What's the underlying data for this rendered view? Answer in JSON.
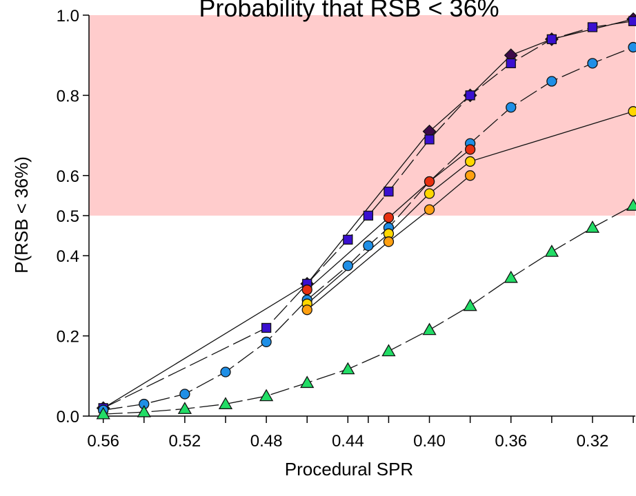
{
  "chart_data": {
    "type": "line",
    "title": "Probability that RSB < 36%",
    "xlabel": "Procedural SPR",
    "ylabel": "P(RSB < 36%)",
    "xlim": [
      0.567,
      0.299
    ],
    "ylim": [
      0.0,
      1.0
    ],
    "x_ticks": [
      0.56,
      0.52,
      0.48,
      0.44,
      0.4,
      0.36,
      0.32
    ],
    "x_ticks_minor": [
      0.56,
      0.54,
      0.52,
      0.5,
      0.48,
      0.46,
      0.44,
      0.43,
      0.42,
      0.4,
      0.38,
      0.36,
      0.34,
      0.32,
      0.3
    ],
    "y_ticks": [
      0.0,
      0.2,
      0.4,
      0.5,
      0.6,
      0.8,
      1.0
    ],
    "y_tick_labels": [
      "0.0",
      "0.2",
      "0.4",
      "0.5",
      "0.6",
      "0.8",
      "1.0"
    ],
    "x_tick_labels": [
      "0.56",
      "0.52",
      "0.48",
      "0.44",
      "0.40",
      "0.36",
      "0.32"
    ],
    "shaded_region": {
      "ymin": 0.5,
      "ymax": 1.0,
      "color": "#ffcccc"
    },
    "grid": false,
    "series": [
      {
        "marker": "diamond",
        "color": "#3d0a4a",
        "dashed": false,
        "x": [
          0.56,
          0.46,
          0.4,
          0.38,
          0.36,
          0.34,
          0.3
        ],
        "y": [
          0.02,
          0.33,
          0.71,
          0.8,
          0.9,
          0.94,
          0.99
        ]
      },
      {
        "marker": "square",
        "color": "#3a10d0",
        "dashed": true,
        "x": [
          0.56,
          0.48,
          0.46,
          0.44,
          0.43,
          0.42,
          0.4,
          0.38,
          0.36,
          0.34,
          0.32,
          0.3
        ],
        "y": [
          0.02,
          0.22,
          0.33,
          0.44,
          0.5,
          0.56,
          0.69,
          0.8,
          0.88,
          0.94,
          0.97,
          0.985
        ]
      },
      {
        "marker": "circle",
        "color": "#1f8fe6",
        "dashed": true,
        "x": [
          0.56,
          0.54,
          0.52,
          0.5,
          0.48,
          0.46,
          0.44,
          0.43,
          0.42,
          0.4,
          0.38,
          0.36,
          0.34,
          0.32,
          0.3
        ],
        "y": [
          0.015,
          0.03,
          0.055,
          0.11,
          0.185,
          0.29,
          0.375,
          0.425,
          0.47,
          0.585,
          0.68,
          0.77,
          0.835,
          0.88,
          0.92
        ]
      },
      {
        "marker": "circle",
        "color": "#e83010",
        "dashed": false,
        "x": [
          0.46,
          0.42,
          0.4,
          0.38
        ],
        "y": [
          0.315,
          0.495,
          0.585,
          0.665
        ]
      },
      {
        "marker": "circle",
        "color": "#ffd700",
        "dashed": false,
        "x": [
          0.46,
          0.42,
          0.4,
          0.38,
          0.3
        ],
        "y": [
          0.28,
          0.455,
          0.555,
          0.635,
          0.76
        ]
      },
      {
        "marker": "circle",
        "color": "#ffa010",
        "dashed": false,
        "x": [
          0.46,
          0.42,
          0.4,
          0.38
        ],
        "y": [
          0.265,
          0.435,
          0.515,
          0.6
        ]
      },
      {
        "marker": "triangle",
        "color": "#22dd66",
        "dashed": true,
        "x": [
          0.56,
          0.54,
          0.52,
          0.5,
          0.48,
          0.46,
          0.44,
          0.42,
          0.4,
          0.38,
          0.36,
          0.34,
          0.32,
          0.3
        ],
        "y": [
          0.005,
          0.01,
          0.018,
          0.03,
          0.05,
          0.083,
          0.117,
          0.162,
          0.215,
          0.275,
          0.345,
          0.41,
          0.47,
          0.525
        ]
      }
    ]
  }
}
